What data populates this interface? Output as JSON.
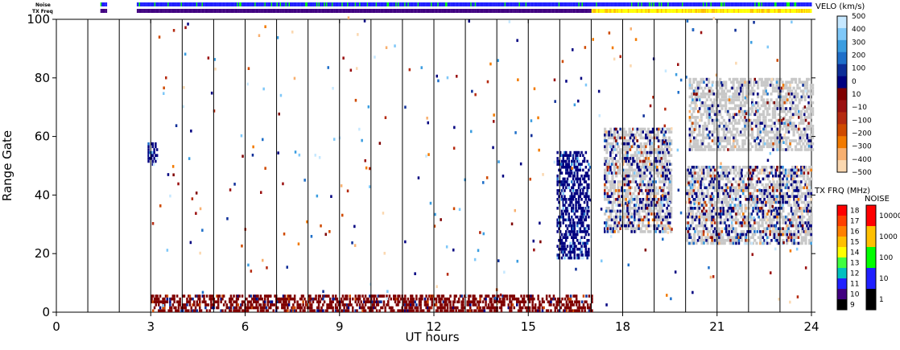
{
  "chart_data": {
    "type": "heatmap",
    "xlabel": "UT hours",
    "ylabel": "Range Gate",
    "xlim": [
      0,
      24
    ],
    "ylim": [
      0,
      100
    ],
    "x_ticks": [
      0,
      3,
      6,
      9,
      12,
      15,
      18,
      21,
      24
    ],
    "x_tick_labels": [
      "0",
      "3",
      "6",
      "9",
      "12",
      "15",
      "18",
      "21",
      "24"
    ],
    "y_ticks": [
      0,
      20,
      40,
      60,
      80,
      100
    ],
    "y_tick_labels": [
      "0",
      "20",
      "40",
      "60",
      "80",
      "100"
    ],
    "scan_boundaries_hours": [
      1,
      2,
      3,
      4,
      5,
      6,
      7,
      8,
      9,
      10,
      11,
      12,
      13,
      14,
      15,
      16,
      17,
      18,
      19,
      20,
      21,
      22,
      23
    ],
    "top_strips": {
      "noise_label": "Noise",
      "txfreq_label": "TX Freq"
    },
    "echo_regions": [
      {
        "name": "ground-scatter-near",
        "x_range": [
          3.0,
          17.0
        ],
        "gate_range": [
          0,
          6
        ],
        "velocity_sign": "negative",
        "density": "dense"
      },
      {
        "name": "irregularity-a",
        "x_range": [
          15.9,
          16.9
        ],
        "gate_range": [
          18,
          55
        ],
        "velocity_sign": "positive",
        "density": "dense"
      },
      {
        "name": "patch-18h",
        "x_range": [
          17.4,
          19.5
        ],
        "gate_range": [
          27,
          63
        ],
        "velocity_sign": "mixed",
        "density": "medium"
      },
      {
        "name": "patch-21h",
        "x_range": [
          20.0,
          24.0
        ],
        "gate_range": [
          23,
          50
        ],
        "velocity_sign": "mixed",
        "density": "medium"
      },
      {
        "name": "patch-21h-upper",
        "x_range": [
          20.1,
          24.0
        ],
        "gate_range": [
          55,
          80
        ],
        "velocity_sign": "mixed",
        "density": "sparse"
      },
      {
        "name": "echo-3h",
        "x_range": [
          2.9,
          3.2
        ],
        "gate_range": [
          50,
          58
        ],
        "velocity_sign": "positive",
        "density": "dense"
      }
    ],
    "legends": [
      {
        "title": "VELO (km/s)",
        "tick_labels": [
          "500",
          "400",
          "300",
          "200",
          "100",
          "0",
          "10",
          "−10",
          "−100",
          "−200",
          "−300",
          "−400",
          "−500"
        ],
        "colors": [
          "#c6e8ff",
          "#7fc8f8",
          "#3b9de0",
          "#1f6fc9",
          "#0d2e98",
          "#000080",
          "#7f0000",
          "#9a1010",
          "#b52a10",
          "#cf4a00",
          "#f27a00",
          "#f8b070",
          "#fbd8b0"
        ]
      },
      {
        "title": "TX FRQ (MHz)",
        "tick_labels": [
          "18",
          "17",
          "16",
          "15",
          "14",
          "13",
          "12",
          "11",
          "10",
          "9"
        ],
        "colors": [
          "#ff0000",
          "#ff4000",
          "#ff8000",
          "#ffc000",
          "#ffff00",
          "#40ff40",
          "#00c0c0",
          "#2020ff",
          "#400080",
          "#000000"
        ]
      },
      {
        "title": "NOISE",
        "tick_labels": [
          "10000",
          "1000",
          "100",
          "10",
          "1"
        ],
        "colors": [
          "#ff0000",
          "#ffc000",
          "#00ff00",
          "#2020ff",
          "#000000"
        ]
      }
    ],
    "ground_scatter_color": "#c8c8c8"
  }
}
